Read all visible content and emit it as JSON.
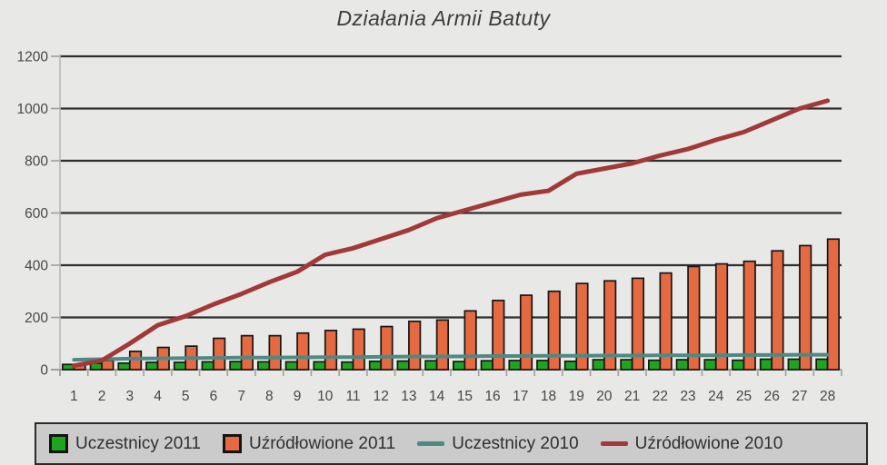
{
  "chart_data": {
    "type": "bar",
    "title": "Działania Armii Batuty",
    "categories": [
      1,
      2,
      3,
      4,
      5,
      6,
      7,
      8,
      9,
      10,
      11,
      12,
      13,
      14,
      15,
      16,
      17,
      18,
      19,
      20,
      21,
      22,
      23,
      24,
      25,
      26,
      27,
      28
    ],
    "series": [
      {
        "name": "Uczestnicy 2011",
        "type": "bar",
        "color": "#1ea41e",
        "values": [
          20,
          24,
          25,
          28,
          28,
          30,
          31,
          30,
          30,
          30,
          29,
          32,
          33,
          34,
          31,
          34,
          35,
          35,
          32,
          38,
          38,
          36,
          38,
          38,
          36,
          40,
          40,
          40
        ]
      },
      {
        "name": "Uźródłowione 2011",
        "type": "bar",
        "color": "#e66a41",
        "values": [
          20,
          35,
          70,
          85,
          90,
          120,
          130,
          130,
          140,
          150,
          155,
          165,
          185,
          190,
          225,
          265,
          285,
          300,
          330,
          340,
          350,
          370,
          395,
          405,
          415,
          455,
          475,
          500
        ]
      },
      {
        "name": "Uczestnicy 2010",
        "type": "line",
        "color": "#4e8984",
        "values": [
          38,
          40,
          42,
          43,
          44,
          45,
          46,
          46,
          47,
          48,
          48,
          49,
          50,
          50,
          51,
          52,
          52,
          53,
          53,
          54,
          54,
          55,
          55,
          55,
          56,
          56,
          57,
          57
        ]
      },
      {
        "name": "Uźródłowione 2010",
        "type": "line",
        "color": "#a23939",
        "values": [
          15,
          35,
          100,
          170,
          205,
          250,
          290,
          335,
          375,
          440,
          465,
          500,
          535,
          580,
          610,
          640,
          670,
          685,
          750,
          770,
          790,
          820,
          845,
          880,
          910,
          955,
          1000,
          1030
        ]
      }
    ],
    "xlabel": "",
    "ylabel": "",
    "ylim": [
      0,
      1200
    ],
    "yticks": [
      0,
      200,
      400,
      600,
      800,
      1000,
      1200
    ],
    "grid": true,
    "legend_position": "bottom"
  },
  "colors": {
    "background": "#e8e8e7",
    "gridline": "#2f2f2f",
    "axis_gray": "#9f9f9f",
    "tick_label": "#474747",
    "legend_background": "#cbcbcb",
    "legend_border": "#2a2a2a",
    "legend_text": "#2f2f2f",
    "title_text": "#3c3c3c"
  }
}
